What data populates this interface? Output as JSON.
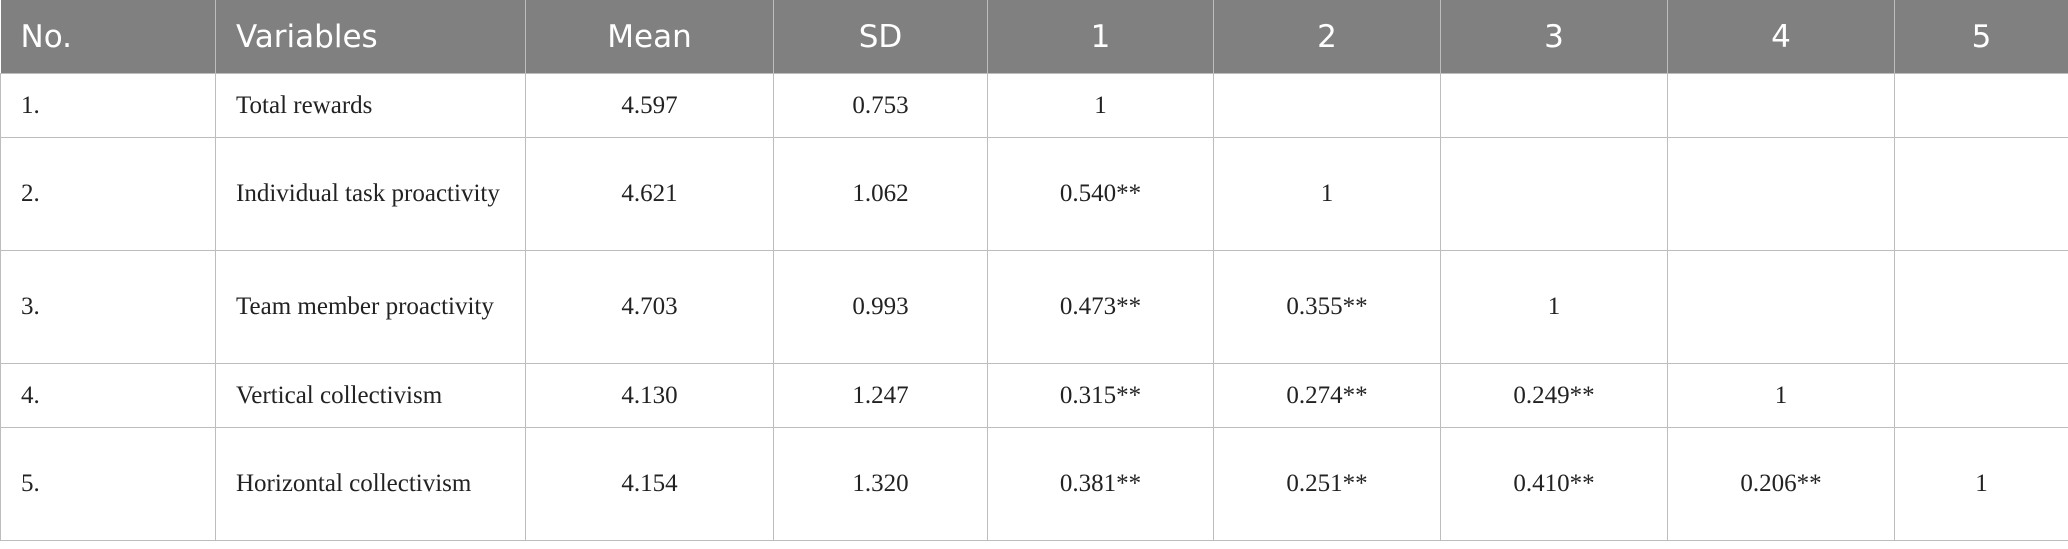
{
  "table": {
    "header": [
      "No.",
      "Variables",
      "Mean",
      "SD",
      "1",
      "2",
      "3",
      "4",
      "5"
    ],
    "rows": [
      [
        "1.",
        "Total rewards",
        "4.597",
        "0.753",
        "1"
      ],
      [
        "2.",
        "Individual task proactivity",
        "4.621",
        "1.062",
        "0.540**",
        "1"
      ],
      [
        "3.",
        "Team member proactivity",
        "4.703",
        "0.993",
        "0.473**",
        "0.355**",
        "1"
      ],
      [
        "4.",
        "Vertical collectivism",
        "4.130",
        "1.247",
        "0.315**",
        "0.274**",
        "0.249**",
        "1"
      ],
      [
        "5.",
        "Horizontal collectivism",
        "4.154",
        "1.320",
        "0.381**",
        "0.251**",
        "0.410**",
        "0.206**",
        "1"
      ]
    ]
  }
}
